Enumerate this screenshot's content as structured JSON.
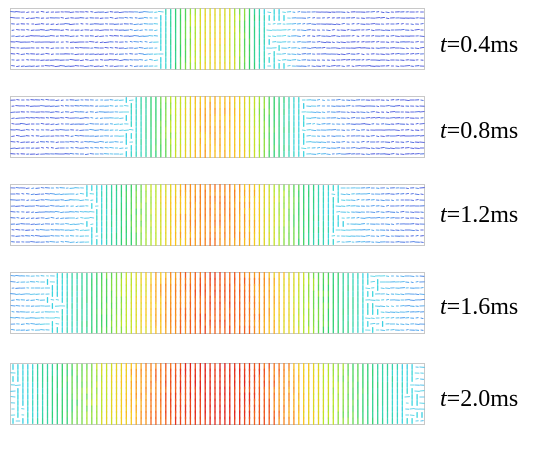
{
  "panels": [
    {
      "var": "t",
      "value": "=0.4ms"
    },
    {
      "var": "t",
      "value": "=0.8ms"
    },
    {
      "var": "t",
      "value": "=1.2ms"
    },
    {
      "var": "t",
      "value": "=1.6ms"
    },
    {
      "var": "t",
      "value": "=2.0ms"
    }
  ],
  "colors": {
    "frame": "#c8c8c8",
    "low": "#2b3bd6",
    "mid": "#2fd06a",
    "high": "#e0201b"
  }
}
